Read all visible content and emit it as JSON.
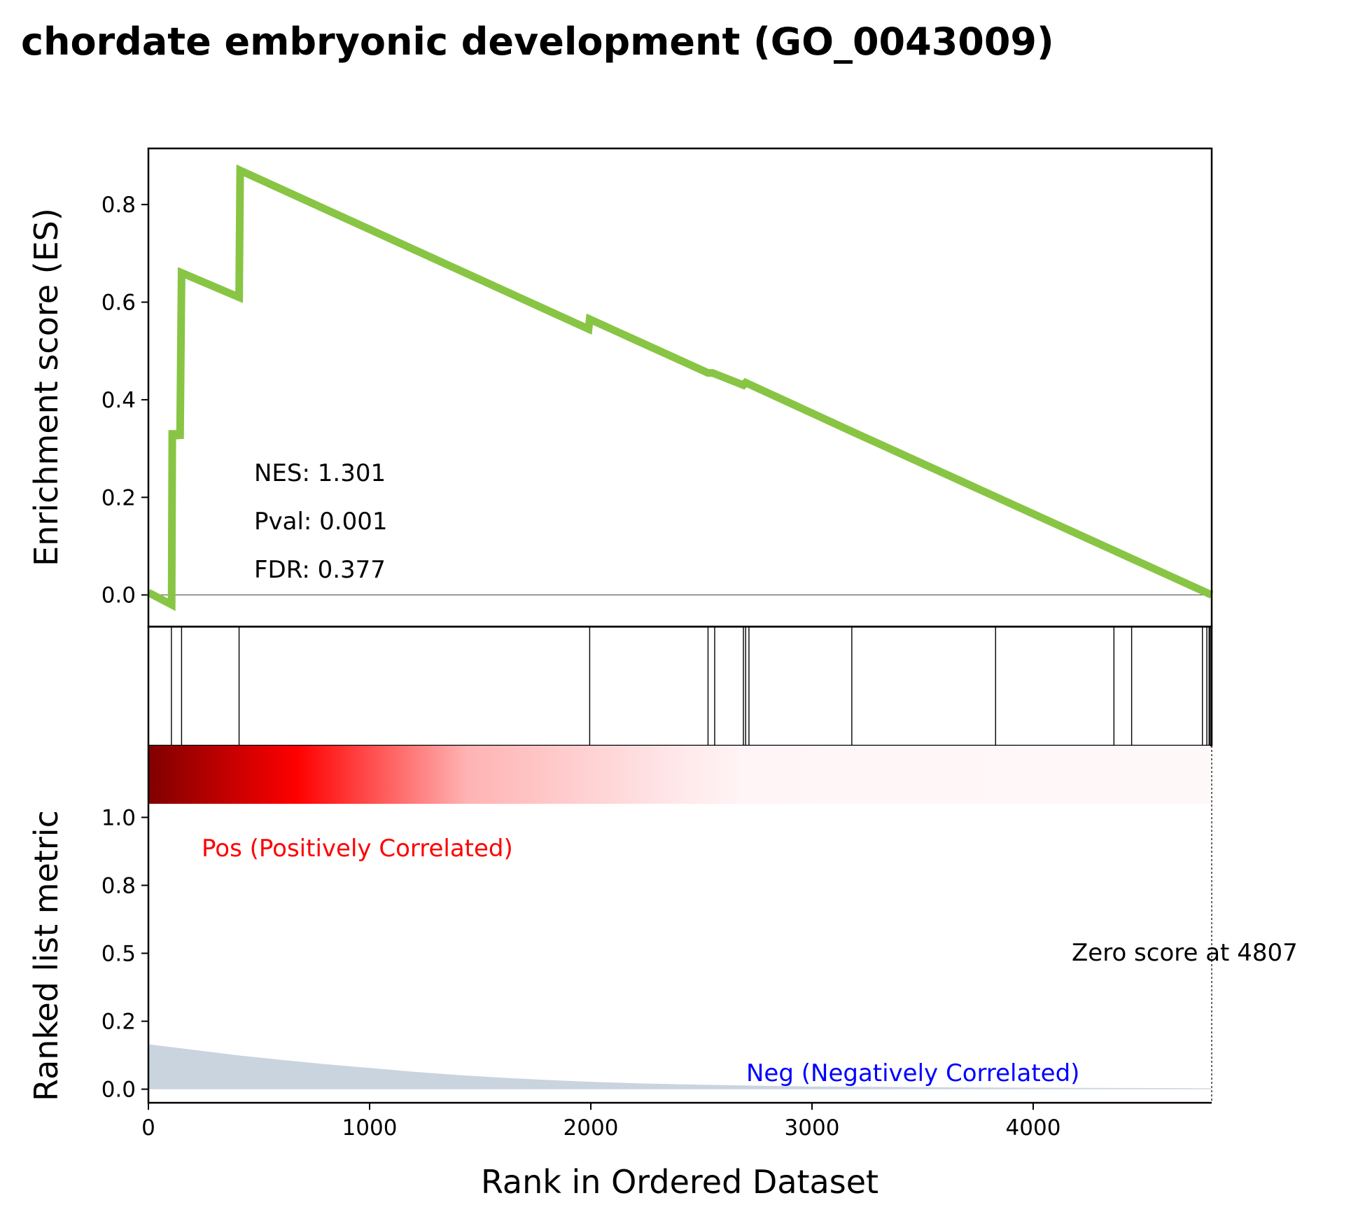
{
  "title": "chordate embryonic development (GO_0043009)",
  "colors": {
    "es_line": "#88c544",
    "metric_fill": "#c9d4de",
    "pos_label": "#ff0000",
    "neg_label": "#0000ff",
    "heatmap_dark": "#800000",
    "heatmap_mid": "#ff0000",
    "heatmap_light": "#fff5f7"
  },
  "chart_data": [
    {
      "type": "line",
      "panel": "enrichment-score",
      "ylabel": "Enrichment score (ES)",
      "xlim": [
        0,
        4807
      ],
      "ylim": [
        -0.065,
        0.915
      ],
      "yticks": [
        "0.0",
        "0.2",
        "0.4",
        "0.6",
        "0.8"
      ],
      "ytick_values": [
        0.0,
        0.2,
        0.4,
        0.6,
        0.8
      ],
      "zero_line": true,
      "annotations": [
        "NES: 1.301",
        "Pval: 0.001",
        "FDR: 0.377"
      ],
      "x": [
        0,
        105,
        108,
        140,
        143,
        150,
        410,
        415,
        1990,
        1995,
        2530,
        2550,
        2690,
        2700,
        3180,
        4807
      ],
      "y": [
        0.005,
        -0.02,
        0.33,
        0.33,
        0.32,
        0.66,
        0.61,
        0.87,
        0.545,
        0.565,
        0.455,
        0.455,
        0.43,
        0.435,
        0.335,
        0.0
      ]
    },
    {
      "type": "hits",
      "panel": "gene-hits",
      "positions": [
        104,
        150,
        410,
        1995,
        2530,
        2560,
        2690,
        2700,
        2715,
        3180,
        3830,
        4365,
        4445,
        4765,
        4785,
        4795,
        4800
      ]
    },
    {
      "type": "area",
      "panel": "ranked-list-metric",
      "ylabel": "Ranked list metric",
      "xlabel": "Rank in Ordered Dataset",
      "xlim": [
        0,
        4807
      ],
      "xticks": [
        "0",
        "1000",
        "2000",
        "3000",
        "4000"
      ],
      "xtick_values": [
        0,
        1000,
        2000,
        3000,
        4000
      ],
      "ylim": [
        -0.05,
        1.05
      ],
      "yticks": [
        "0.0",
        "0.2",
        "0.5",
        "0.8",
        "1.0"
      ],
      "ytick_values": [
        0.0,
        0.25,
        0.5,
        0.75,
        1.0
      ],
      "x": [
        0,
        200,
        400,
        600,
        800,
        1000,
        1200,
        1400,
        1600,
        1800,
        2000,
        2200,
        2400,
        2600,
        2800,
        3000,
        3400,
        3800,
        4200,
        4600,
        4807
      ],
      "y": [
        0.165,
        0.145,
        0.125,
        0.108,
        0.092,
        0.078,
        0.064,
        0.052,
        0.042,
        0.034,
        0.027,
        0.022,
        0.018,
        0.015,
        0.012,
        0.01,
        0.008,
        0.006,
        0.005,
        0.004,
        0.003
      ],
      "zero_score_x": 4807,
      "zero_score_label": "Zero score at 4807",
      "pos_label": "Pos (Positively Correlated)",
      "neg_label": "Neg (Negatively Correlated)"
    }
  ]
}
